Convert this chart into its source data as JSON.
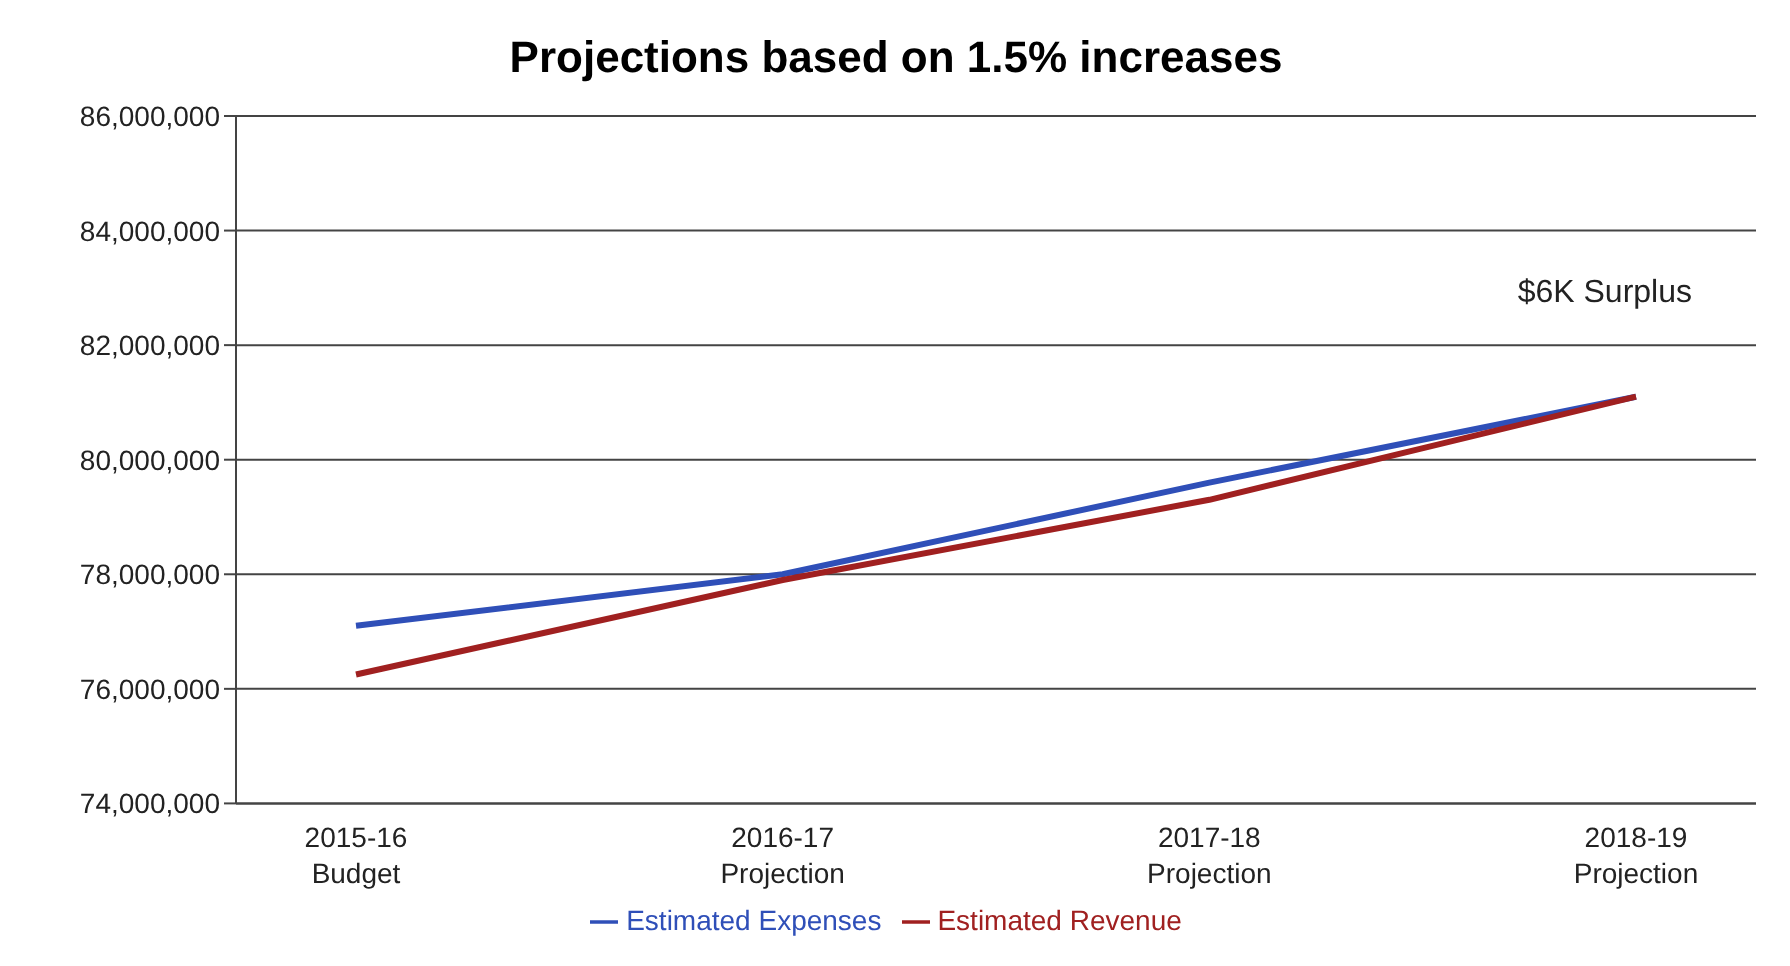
{
  "chart_data": {
    "type": "line",
    "title": "Projections based on 1.5% increases",
    "categories": [
      "2015-16\nBudget",
      "2016-17\nProjection",
      "2017-18\nProjection",
      "2018-19\nProjection"
    ],
    "series": [
      {
        "name": "Estimated Expenses",
        "color": "#2f4fb8",
        "values": [
          77100000,
          78000000,
          79600000,
          81100000
        ]
      },
      {
        "name": "Estimated Revenue",
        "color": "#a02020",
        "values": [
          76250000,
          77900000,
          79300000,
          81100000
        ]
      }
    ],
    "ylim": [
      74000000,
      86000000
    ],
    "yticks": [
      {
        "value": 74000000,
        "label": "74,000,000"
      },
      {
        "value": 76000000,
        "label": "76,000,000"
      },
      {
        "value": 78000000,
        "label": "78,000,000"
      },
      {
        "value": 80000000,
        "label": "80,000,000"
      },
      {
        "value": 82000000,
        "label": "82,000,000"
      },
      {
        "value": 84000000,
        "label": "84,000,000"
      },
      {
        "value": 86000000,
        "label": "86,000,000"
      }
    ],
    "grid": "y",
    "legend": "bottom",
    "marker": "none",
    "line_style": "solid",
    "annotations": [
      "$6K Surplus"
    ]
  }
}
